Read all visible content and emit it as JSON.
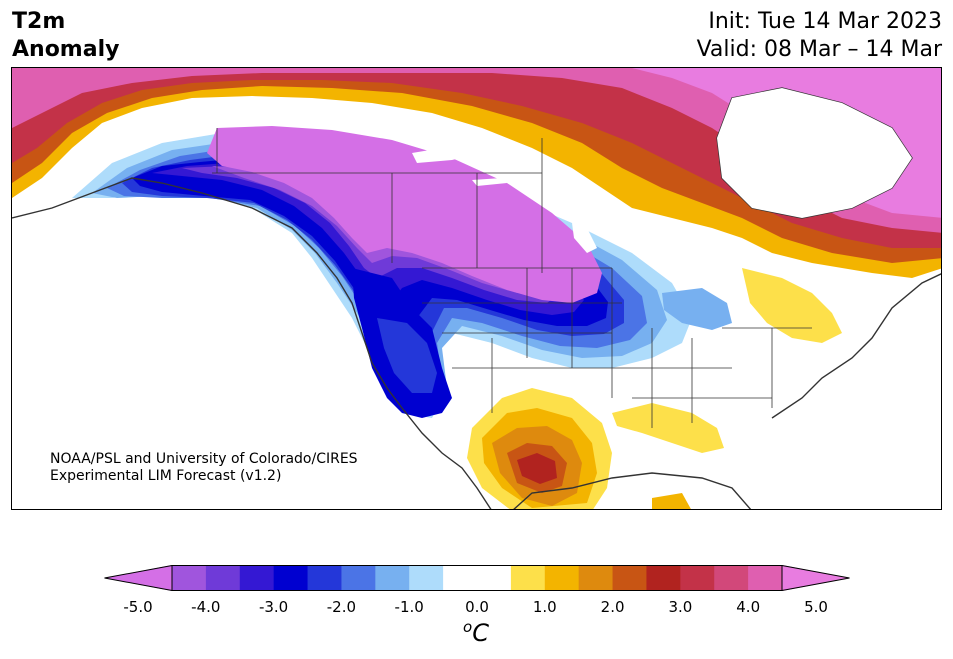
{
  "title": {
    "line1": "T2m",
    "line2": "Anomaly"
  },
  "dates": {
    "init": "Init: Tue 14 Mar 2023",
    "valid": "Valid: 08 Mar – 14 Mar"
  },
  "credit": {
    "line1": "NOAA/PSL and University of Colorado/CIRES",
    "line2": "Experimental LIM Forecast (v1.2)"
  },
  "colorbar": {
    "colors": [
      "#d46fe6",
      "#a055dd",
      "#6f3ad8",
      "#3418d3",
      "#0000d0",
      "#2437d9",
      "#4b74e6",
      "#77b0f0",
      "#aedcfb",
      "#ffffff",
      "#ffffff",
      "#fde04a",
      "#f3b400",
      "#de8a0e",
      "#c85514",
      "#b1231f",
      "#c33248",
      "#d2487a",
      "#df5fb0",
      "#e87ce0"
    ],
    "min_label": "-5.0",
    "max_label": "5.0",
    "ticks": [
      "-5.0",
      "-4.0",
      "-3.0",
      "-2.0",
      "-1.0",
      "0.0",
      "1.0",
      "2.0",
      "3.0",
      "4.0",
      "5.0"
    ],
    "units_base": "C",
    "units_sup": "o"
  }
}
